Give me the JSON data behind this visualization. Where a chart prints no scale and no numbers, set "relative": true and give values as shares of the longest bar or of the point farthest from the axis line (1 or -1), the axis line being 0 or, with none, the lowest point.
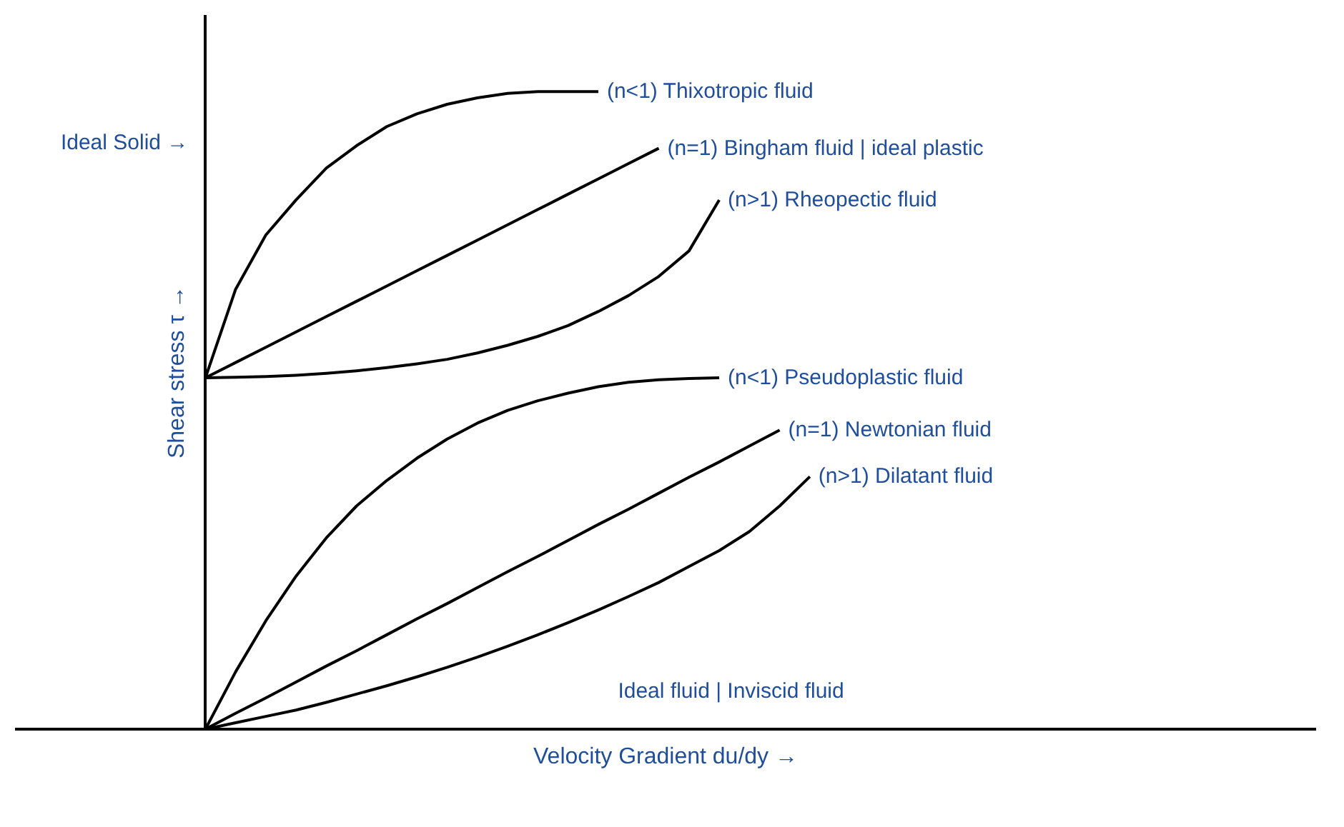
{
  "chart_data": {
    "type": "line",
    "relative": true,
    "xlabel": "Velocity Gradient du/dy →",
    "ylabel": "Shear stress τ →",
    "legend": false,
    "grid": false,
    "marker": "none",
    "line_style": "solid",
    "annotations": [
      "Ideal Solid →",
      "Ideal fluid | Inviscid fluid"
    ],
    "categories": [
      null,
      null,
      null,
      null,
      null,
      null,
      null,
      null,
      null,
      null,
      null,
      null,
      null,
      null,
      null,
      null,
      null,
      null,
      null,
      null,
      null
    ],
    "series": [
      {
        "name": "(n<1) Thixotropic fluid",
        "color": "#000000",
        "values": [
          0.551,
          0.69,
          0.775,
          0.83,
          0.88,
          0.915,
          0.945,
          0.965,
          0.98,
          0.99,
          0.997,
          1.0,
          1.0,
          1.0,
          null,
          null,
          null,
          null,
          null,
          null,
          null
        ]
      },
      {
        "name": "(n=1) Bingham fluid | ideal plastic",
        "color": "#000000",
        "values": [
          0.551,
          0.575,
          0.599,
          0.623,
          0.647,
          0.671,
          0.695,
          0.719,
          0.743,
          0.767,
          0.791,
          0.815,
          0.839,
          0.863,
          0.887,
          0.911,
          null,
          null,
          null,
          null,
          null
        ]
      },
      {
        "name": "(n>1) Rheopectic fluid",
        "color": "#000000",
        "values": [
          0.551,
          0.552,
          0.553,
          0.555,
          0.558,
          0.562,
          0.567,
          0.573,
          0.58,
          0.59,
          0.602,
          0.616,
          0.633,
          0.655,
          0.68,
          0.71,
          0.75,
          0.83,
          null,
          null,
          null
        ]
      },
      {
        "name": "(n<1) Pseudoplastic fluid",
        "color": "#000000",
        "values": [
          0,
          0.09,
          0.17,
          0.24,
          0.3,
          0.35,
          0.39,
          0.425,
          0.455,
          0.48,
          0.5,
          0.515,
          0.527,
          0.537,
          0.544,
          0.548,
          0.55,
          0.551,
          null,
          null,
          null
        ]
      },
      {
        "name": "(n=1) Newtonian fluid",
        "color": "#000000",
        "values": [
          0,
          0.025,
          0.049,
          0.074,
          0.099,
          0.123,
          0.148,
          0.173,
          0.197,
          0.222,
          0.247,
          0.271,
          0.296,
          0.321,
          0.345,
          0.37,
          0.395,
          0.419,
          0.444,
          0.469,
          null
        ]
      },
      {
        "name": "(n>1) Dilatant fluid",
        "color": "#000000",
        "values": [
          0,
          0.01,
          0.02,
          0.03,
          0.042,
          0.055,
          0.068,
          0.082,
          0.097,
          0.113,
          0.13,
          0.148,
          0.167,
          0.187,
          0.208,
          0.23,
          0.255,
          0.28,
          0.31,
          0.35,
          0.396
        ]
      }
    ]
  }
}
